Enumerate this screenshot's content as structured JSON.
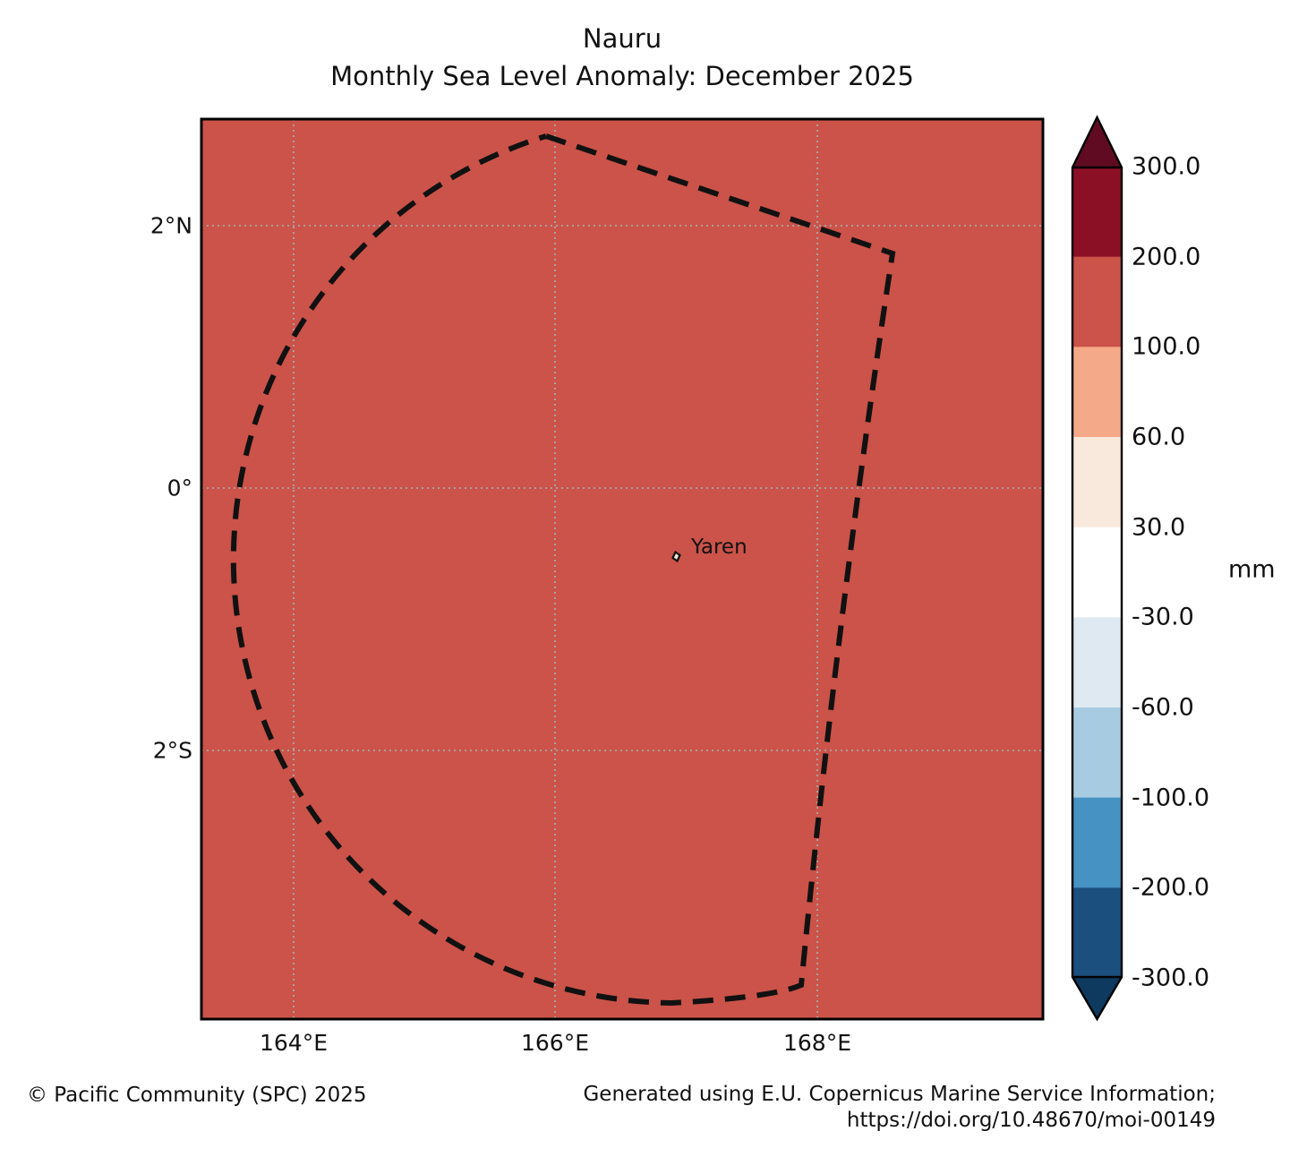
{
  "title": {
    "line1": "Nauru",
    "line2": "Monthly Sea Level Anomaly: December 2025"
  },
  "map": {
    "fill_color": "#cb5349",
    "gridline_color": "#a8a8a8",
    "boundary_color": "#111111",
    "x_ticks": [
      "164°E",
      "166°E",
      "168°E"
    ],
    "y_ticks": [
      "2°N",
      "0°",
      "2°S"
    ],
    "station": {
      "name": "Yaren"
    }
  },
  "colorbar": {
    "unit": "mm",
    "levels": [
      "300.0",
      "200.0",
      "100.0",
      "60.0",
      "30.0",
      "-30.0",
      "-60.0",
      "-100.0",
      "-200.0",
      "-300.0"
    ],
    "band_colors": [
      "#8b1026",
      "#cb5349",
      "#f4a988",
      "#f9e9dc",
      "#ffffff",
      "#dfe9f2",
      "#a7cce2",
      "#4592c3",
      "#1b4f7e"
    ],
    "over_color": "#600b22",
    "under_color": "#0e3a5f"
  },
  "footer": {
    "left": "© Pacific Community (SPC) 2025",
    "right_line1": "Generated using E.U. Copernicus Marine Service Information;",
    "right_line2": "https://doi.org/10.48670/moi-00149"
  },
  "chart_data": {
    "type": "heatmap",
    "title": "Nauru — Monthly Sea Level Anomaly: December 2025",
    "field": "sea_level_anomaly",
    "unit": "mm",
    "x_axis": {
      "tick_labels": [
        "164°E",
        "166°E",
        "168°E"
      ],
      "approx_range_deg_east": [
        163.3,
        169.7
      ]
    },
    "y_axis": {
      "tick_labels": [
        "2°N",
        "0°",
        "2°S"
      ],
      "approx_range_deg_north": [
        -4.1,
        2.8
      ]
    },
    "uniform_field_band": "100.0 to 200.0 mm (entire shown domain falls in one color class)",
    "colorbar_levels": [
      300.0,
      200.0,
      100.0,
      60.0,
      30.0,
      -30.0,
      -60.0,
      -100.0,
      -200.0,
      -300.0
    ],
    "colorbar_extends": [
      "above 300.0",
      "below -300.0"
    ],
    "legend_position": "right vertical colorbar",
    "grid": "dotted graticule at 2-degree intervals",
    "annotations": [
      {
        "label": "Yaren",
        "approx_lon_deg_east": 166.92,
        "approx_lat_deg_north": -0.55,
        "marker": "small island outline"
      }
    ],
    "overlays": [
      "dashed EEZ boundary polygon around Nauru"
    ]
  }
}
